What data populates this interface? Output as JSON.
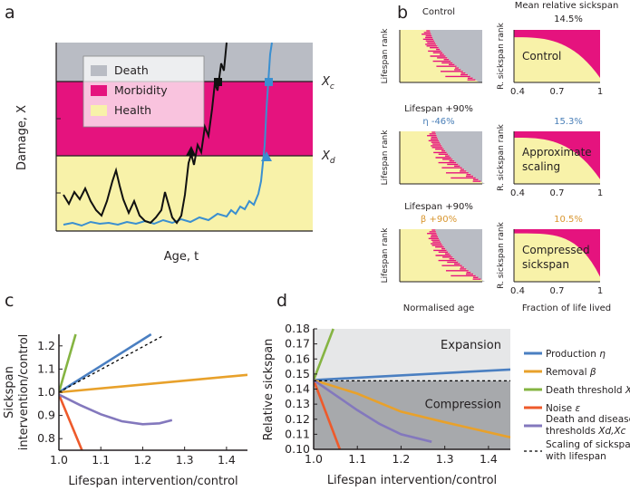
{
  "panel_labels": {
    "a": "a",
    "b": "b",
    "c": "c",
    "d": "d"
  },
  "panel_a": {
    "ylabel": "Damage, X",
    "xlabel": "Age, t",
    "threshold_labels": {
      "xc": "X",
      "xc_sub": "c",
      "xd": "X",
      "xd_sub": "d"
    },
    "legend": [
      {
        "label": "Death",
        "color": "#b9bcc4"
      },
      {
        "label": "Morbidity",
        "color": "#e5137e"
      },
      {
        "label": "Health",
        "color": "#f8f2a9"
      }
    ]
  },
  "panel_b": {
    "col_left_title": "Control",
    "col_right_title": "Mean relative sickspan",
    "rows": [
      {
        "header": "",
        "param": "",
        "param_color": "#231f20",
        "mean": "14.5%",
        "mean_color": "#231f20",
        "label1": "Control",
        "label2": "",
        "left_ylabel": "Lifespan rank",
        "right_ylabel": "R. sickspan rank"
      },
      {
        "header": "Lifespan +90%",
        "param": "η -46%",
        "param_color": "#4a7fb8",
        "mean": "15.3%",
        "mean_color": "#4a7fb8",
        "label1": "Approximate",
        "label2": "scaling",
        "left_ylabel": "Lifespan rank",
        "right_ylabel": "R. sickspan rank"
      },
      {
        "header": "Lifespan +90%",
        "param": "β +90%",
        "param_color": "#d9962f",
        "mean": "10.5%",
        "mean_color": "#d9962f",
        "label1": "Compressed",
        "label2": "sickspan",
        "left_ylabel": "Lifespan rank",
        "right_ylabel": "R. sickspan rank"
      }
    ],
    "right_xticks": [
      "0.4",
      "0.7",
      "1"
    ],
    "left_xlabel": "Normalised age",
    "right_xlabel": "Fraction of life lived"
  },
  "chart_data": [
    {
      "type": "line",
      "panel": "c",
      "xlabel": "Lifespan intervention/control",
      "ylabel": [
        "Sickspan",
        "intervention/control"
      ],
      "xlim": [
        1.0,
        1.45
      ],
      "ylim": [
        0.75,
        1.25
      ],
      "xticks": [
        1.0,
        1.1,
        1.2,
        1.3,
        1.4
      ],
      "yticks": [
        0.8,
        0.9,
        1.0,
        1.1,
        1.2
      ],
      "series": [
        {
          "name": "Production η",
          "color": "#4a7fc1",
          "dashed": false,
          "points": [
            [
              1.0,
              1.0
            ],
            [
              1.22,
              1.25
            ]
          ]
        },
        {
          "name": "Removal β",
          "color": "#e8a12b",
          "dashed": false,
          "points": [
            [
              1.0,
              1.0
            ],
            [
              1.45,
              1.075
            ]
          ]
        },
        {
          "name": "Death threshold Xc",
          "color": "#85b442",
          "dashed": false,
          "points": [
            [
              1.0,
              1.0
            ],
            [
              1.04,
              1.25
            ]
          ]
        },
        {
          "name": "Noise ε",
          "color": "#ee5a2b",
          "dashed": false,
          "points": [
            [
              1.0,
              0.99
            ],
            [
              1.055,
              0.75
            ]
          ]
        },
        {
          "name": "Death and disease thresholds Xd,Xc",
          "color": "#8378bd",
          "dashed": false,
          "points": [
            [
              1.0,
              0.99
            ],
            [
              1.05,
              0.945
            ],
            [
              1.1,
              0.905
            ],
            [
              1.15,
              0.875
            ],
            [
              1.2,
              0.862
            ],
            [
              1.24,
              0.866
            ],
            [
              1.27,
              0.88
            ]
          ]
        },
        {
          "name": "Scaling of sickspan with lifespan",
          "color": "#000000",
          "dashed": true,
          "points": [
            [
              1.0,
              1.0
            ],
            [
              1.25,
              1.245
            ]
          ]
        }
      ]
    },
    {
      "type": "line",
      "panel": "d",
      "xlabel": "Lifespan intervention/control",
      "ylabel": "Relative sickspan",
      "xlim": [
        1.0,
        1.45
      ],
      "ylim": [
        0.1,
        0.18
      ],
      "xticks": [
        1.0,
        1.1,
        1.2,
        1.3,
        1.4
      ],
      "yticks": [
        0.1,
        0.11,
        0.12,
        0.13,
        0.14,
        0.15,
        0.16,
        0.17,
        0.18
      ],
      "regions": [
        {
          "label": "Expansion",
          "color": "#e6e7e8"
        },
        {
          "label": "Compression",
          "color": "#a7a9ac"
        }
      ],
      "baseline": 0.1455,
      "series": [
        {
          "name": "Production",
          "symbol": "η",
          "color": "#4a7fc1",
          "dashed": false,
          "points": [
            [
              1.0,
              0.146
            ],
            [
              1.45,
              0.153
            ]
          ]
        },
        {
          "name": "Removal",
          "symbol": "β",
          "color": "#e8a12b",
          "dashed": false,
          "points": [
            [
              1.0,
              0.146
            ],
            [
              1.1,
              0.137
            ],
            [
              1.2,
              0.125
            ],
            [
              1.3,
              0.118
            ],
            [
              1.45,
              0.108
            ]
          ]
        },
        {
          "name": "Death threshold",
          "symbol": "Xc",
          "color": "#85b442",
          "dashed": false,
          "points": [
            [
              1.0,
              0.146
            ],
            [
              1.045,
              0.18
            ]
          ]
        },
        {
          "name": "Noise",
          "symbol": "ε",
          "color": "#ee5a2b",
          "dashed": false,
          "points": [
            [
              1.0,
              0.146
            ],
            [
              1.06,
              0.1
            ]
          ]
        },
        {
          "name": "Death and disease",
          "name2": "thresholds",
          "symbol": "Xd,Xc",
          "color": "#8378bd",
          "dashed": false,
          "points": [
            [
              1.0,
              0.146
            ],
            [
              1.05,
              0.136
            ],
            [
              1.1,
              0.126
            ],
            [
              1.15,
              0.117
            ],
            [
              1.2,
              0.11
            ],
            [
              1.27,
              0.105
            ]
          ]
        },
        {
          "name": "Scaling of sickspan",
          "name2": "with lifespan",
          "symbol": "",
          "color": "#000000",
          "dashed": true,
          "points": [
            [
              1.0,
              0.1455
            ],
            [
              1.45,
              0.1455
            ]
          ]
        }
      ]
    }
  ]
}
